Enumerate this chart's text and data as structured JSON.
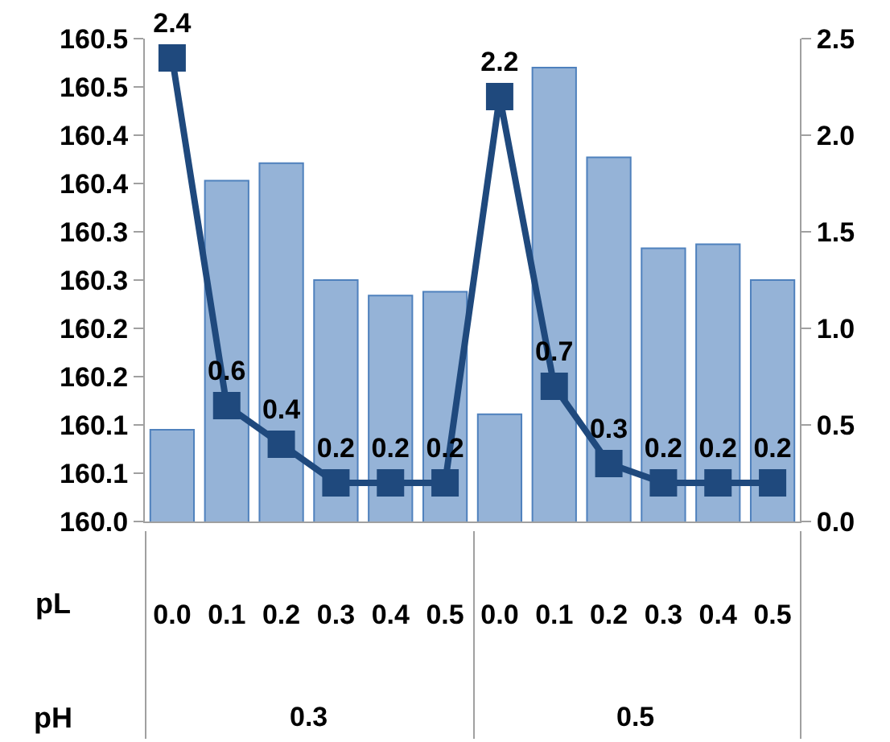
{
  "chart_data": {
    "type": "bar",
    "categories": [
      "0.0",
      "0.1",
      "0.2",
      "0.3",
      "0.4",
      "0.5",
      "0.0",
      "0.1",
      "0.2",
      "0.3",
      "0.4",
      "0.5"
    ],
    "series": [
      {
        "color": "#95b3d7",
        "values": [
          160.095,
          160.353,
          160.371,
          160.25,
          160.234,
          160.238,
          160.111,
          160.47,
          160.377,
          160.283,
          160.287,
          160.25
        ]
      },
      {
        "type": "line",
        "axis": "y2",
        "color": "#1f497d",
        "marker": "square",
        "values": [
          2.4,
          0.6,
          0.4,
          0.2,
          0.2,
          0.2,
          2.2,
          0.7,
          0.3,
          0.2,
          0.2,
          0.2
        ],
        "value_labels": [
          "2.4",
          "0.6",
          "0.4",
          "0.2",
          "0.2",
          "0.2",
          "2.2",
          "0.7",
          "0.3",
          "0.2",
          "0.2",
          "0.2"
        ]
      }
    ],
    "ylim": [
      160.0,
      160.5
    ],
    "yticks": [
      {
        "value": 160.0,
        "label": "160.0"
      },
      {
        "value": 160.05,
        "label": "160.1"
      },
      {
        "value": 160.1,
        "label": "160.1"
      },
      {
        "value": 160.15,
        "label": "160.2"
      },
      {
        "value": 160.2,
        "label": "160.2"
      },
      {
        "value": 160.25,
        "label": "160.3"
      },
      {
        "value": 160.3,
        "label": "160.3"
      },
      {
        "value": 160.35,
        "label": "160.4"
      },
      {
        "value": 160.4,
        "label": "160.4"
      },
      {
        "value": 160.45,
        "label": "160.5"
      },
      {
        "value": 160.5,
        "label": "160.5"
      }
    ],
    "y2lim": [
      0,
      2.5
    ],
    "y2ticks": [
      {
        "value": 0,
        "label": "0.0"
      },
      {
        "value": 0.5,
        "label": "0.5"
      },
      {
        "value": 1,
        "label": "1.0"
      },
      {
        "value": 1.5,
        "label": "1.5"
      },
      {
        "value": 2,
        "label": "2.0"
      },
      {
        "value": 2.5,
        "label": "2.5"
      }
    ],
    "annotations": [
      "pL",
      "pH",
      "0.3",
      "0.5"
    ],
    "grid": false,
    "legend": false
  }
}
